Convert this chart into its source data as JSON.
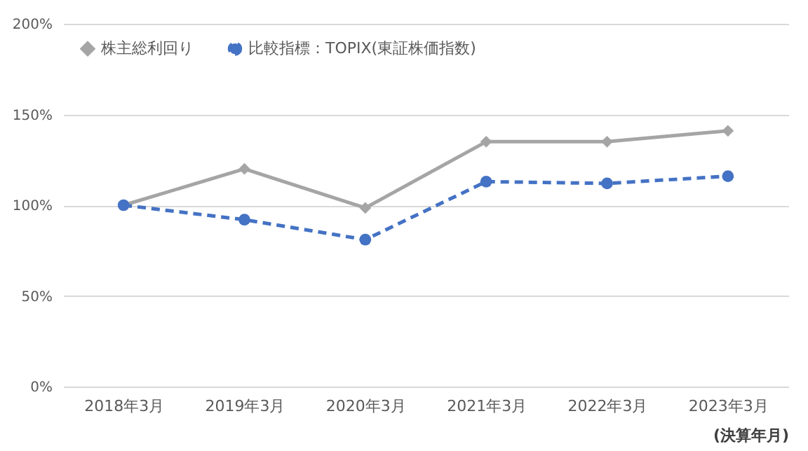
{
  "chart_data": {
    "type": "line",
    "categories": [
      "2018年3月",
      "2019年3月",
      "2020年3月",
      "2021年3月",
      "2022年3月",
      "2023年3月"
    ],
    "xlabel": "(決算年月)",
    "series": [
      {
        "name": "株主総利回り",
        "color": "#a5a5a5",
        "values": [
          100,
          120,
          98.5,
          135,
          135,
          141
        ],
        "marker": "diamond",
        "line_style": "solid"
      },
      {
        "name": "比較指標：TOPIX(東証株価指数)",
        "color": "#4472c4",
        "values": [
          100,
          92,
          81,
          113,
          112,
          116
        ],
        "marker": "circle",
        "line_style": "dashed"
      }
    ],
    "ylim": [
      0,
      200
    ],
    "yticks": [
      {
        "value": 0,
        "label": "0%"
      },
      {
        "value": 50,
        "label": "50%"
      },
      {
        "value": 100,
        "label": "100%"
      },
      {
        "value": 150,
        "label": "150%"
      },
      {
        "value": 200,
        "label": "200%"
      }
    ],
    "grid": "y",
    "legend": "top left"
  }
}
